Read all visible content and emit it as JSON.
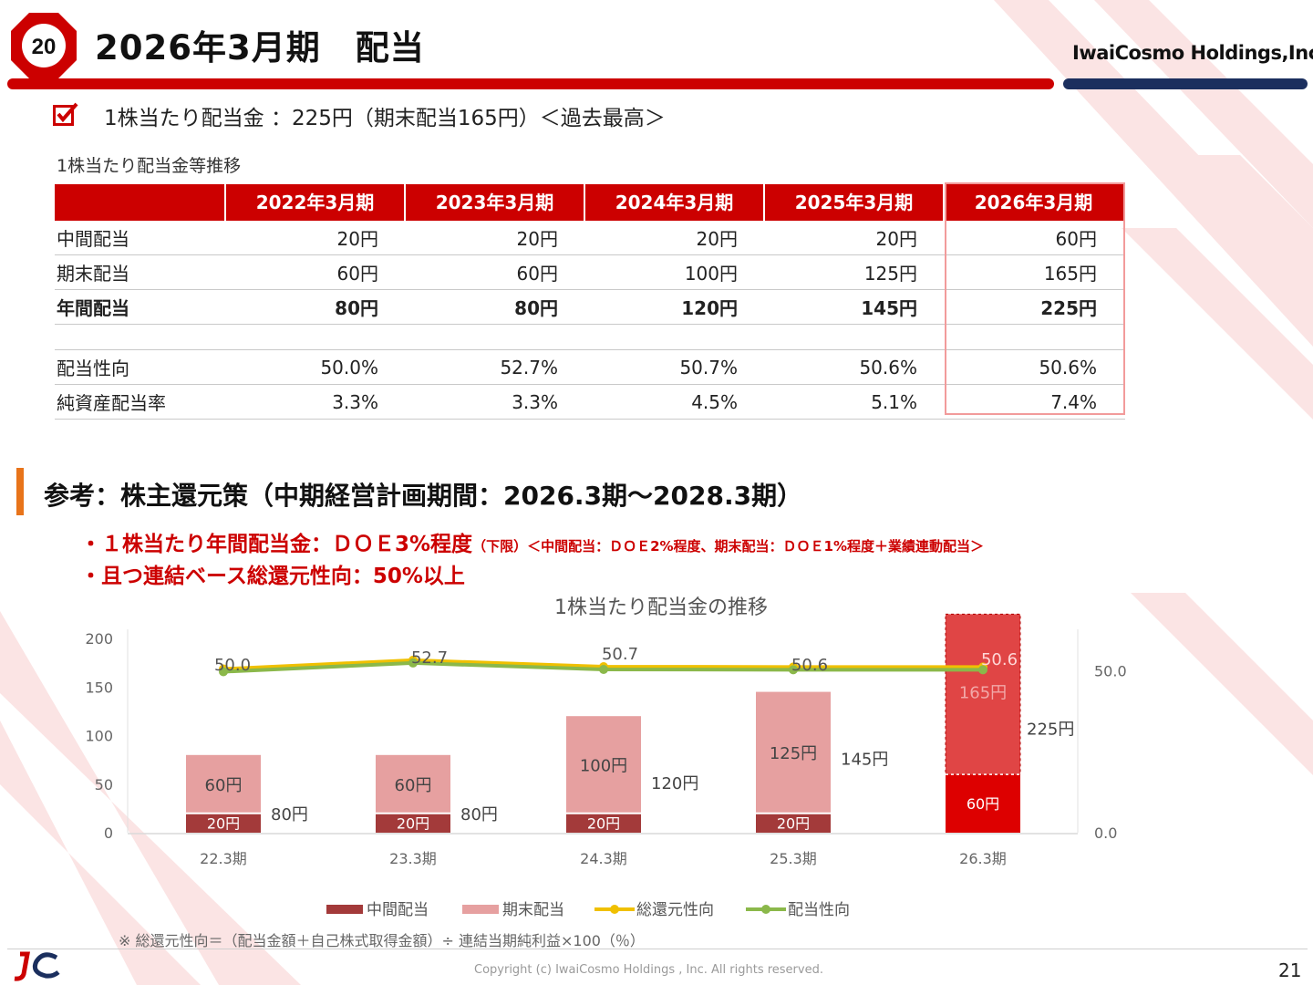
{
  "header": {
    "badge_number": "20",
    "title": "2026年3月期　配当",
    "company": "IwaiCosmo Holdings,Inc."
  },
  "headline": "1株当たり配当金 ：225円（期末配当165円）＜過去最高＞",
  "table": {
    "caption": "1株当たり配当金等推移",
    "columns": [
      "2022年3月期",
      "2023年3月期",
      "2024年3月期",
      "2025年3月期",
      "2026年3月期"
    ],
    "rows": [
      {
        "label": "中間配当",
        "values": [
          "20円",
          "20円",
          "20円",
          "20円",
          "60円"
        ],
        "bold": false
      },
      {
        "label": "期末配当",
        "values": [
          "60円",
          "60円",
          "100円",
          "125円",
          "165円"
        ],
        "bold": false
      },
      {
        "label": "年間配当",
        "values": [
          "80円",
          "80円",
          "120円",
          "145円",
          "225円"
        ],
        "bold": true
      },
      {
        "label": "",
        "values": [
          "",
          "",
          "",
          "",
          ""
        ],
        "bold": false,
        "gap": true
      },
      {
        "label": "配当性向",
        "values": [
          "50.0%",
          "52.7%",
          "50.7%",
          "50.6%",
          "50.6%"
        ],
        "bold": false
      },
      {
        "label": "純資産配当率",
        "values": [
          "3.3%",
          "3.3%",
          "4.5%",
          "5.1%",
          "7.4%"
        ],
        "bold": false
      }
    ]
  },
  "section": {
    "title": "参考：株主還元策（中期経営計画期間：2026.3期～2028.3期）",
    "bullet1_main": "・１株当たり年間配当金：ＤＯＥ3%程度",
    "bullet1_note": "（下限）＜中間配当：ＤＯＥ2%程度、期末配当：ＤＯＥ1%程度＋業績連動配当＞",
    "bullet2": "・且つ連結ベース総還元性向：50%以上"
  },
  "chart_data": {
    "type": "bar",
    "title": "1株当たり配当金の推移",
    "categories": [
      "22.3期",
      "23.3期",
      "24.3期",
      "25.3期",
      "26.3期"
    ],
    "series": [
      {
        "name": "中間配当",
        "kind": "bar",
        "values": [
          20,
          20,
          20,
          20,
          60
        ],
        "labels": [
          "20円",
          "20円",
          "20円",
          "20円",
          "60円"
        ]
      },
      {
        "name": "期末配当",
        "kind": "bar",
        "values": [
          60,
          60,
          100,
          125,
          165
        ],
        "labels": [
          "60円",
          "60円",
          "100円",
          "125円",
          "165円"
        ]
      },
      {
        "name": "総還元性向",
        "kind": "line",
        "axis": "right",
        "values": [
          50.0,
          52.7,
          50.7,
          50.6,
          50.6
        ]
      },
      {
        "name": "配当性向",
        "kind": "line",
        "axis": "right",
        "values": [
          50.0,
          52.7,
          50.7,
          50.6,
          50.6
        ]
      }
    ],
    "totals": [
      "80円",
      "80円",
      "120円",
      "145円",
      "225円"
    ],
    "ratio_labels": [
      "50.0",
      "52.7",
      "50.7",
      "50.6",
      "50.6"
    ],
    "y_left": {
      "ticks": [
        "0",
        "50",
        "100",
        "150",
        "200"
      ],
      "range": [
        0,
        200
      ]
    },
    "y_right": {
      "ticks": [
        "0.0",
        "50.0"
      ],
      "range": [
        0,
        60
      ]
    },
    "legend_position": "bottom",
    "colors": {
      "interim": "#a33a3a",
      "year_end": "#e6a0a0",
      "forecast_interim": "#dd0000",
      "forecast_year_end": "#e04545",
      "total_return": "#f0c000",
      "payout": "#8bb84a"
    }
  },
  "footnote": "※ 総還元性向＝（配当金額＋自己株式取得金額）÷ 連結当期純利益×100（％）",
  "footer": {
    "copyright": "Copyright (c) IwaiCosmo Holdings , Inc. All rights reserved.",
    "page_number": "21"
  }
}
